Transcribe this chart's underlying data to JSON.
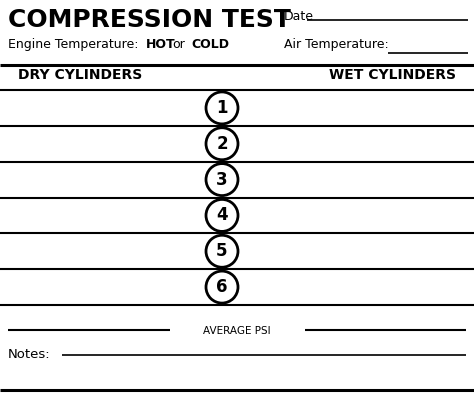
{
  "title": "COMPRESSION TEST",
  "engine_temp_label": "Engine Temperature:",
  "hot": "HOT",
  "or": "or",
  "cold": "COLD",
  "date_label": "Date",
  "air_temp_label": "Air Temperature:",
  "dry_cylinders": "DRY CYLINDERS",
  "wet_cylinders": "WET CYLINDERS",
  "cylinders": [
    1,
    2,
    3,
    4,
    5,
    6
  ],
  "average_psi": "AVERAGE PSI",
  "notes_label": "Notes:",
  "bg_color": "#ffffff",
  "text_color": "#000000",
  "line_color": "#000000"
}
